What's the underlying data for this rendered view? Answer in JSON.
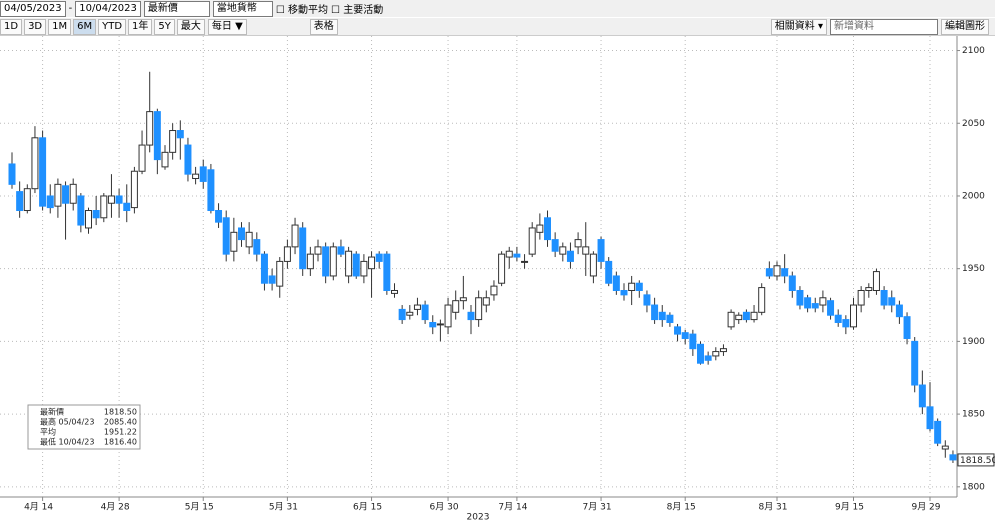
{
  "toolbar": {
    "start_date": "04/05/2023",
    "end_date": "10/04/2023",
    "field": "最新價",
    "currency": "當地貨幣",
    "moving_average": "移動平均",
    "events": "主要活動",
    "ranges": [
      "1D",
      "3D",
      "1M",
      "6M",
      "YTD",
      "1年",
      "5Y",
      "最大"
    ],
    "active_range": "6M",
    "frequency": "每日 ▼",
    "table": "表格",
    "related": "相關資料 ▾",
    "add_data": "新增資料",
    "edit": "編輯圖形"
  },
  "chart_data": {
    "type": "candlestick",
    "x_label": "2023",
    "up_color": "#ffffff",
    "down_color": "#1e90ff",
    "grid": true,
    "x": [
      "2023-04-10",
      "2023-04-11",
      "2023-04-12",
      "2023-04-13",
      "2023-04-14",
      "2023-04-17",
      "2023-04-18",
      "2023-04-19",
      "2023-04-20",
      "2023-04-21",
      "2023-04-24",
      "2023-04-25",
      "2023-04-26",
      "2023-04-27",
      "2023-04-28",
      "2023-05-01",
      "2023-05-02",
      "2023-05-03",
      "2023-05-04",
      "2023-05-05",
      "2023-05-08",
      "2023-05-09",
      "2023-05-10",
      "2023-05-11",
      "2023-05-12",
      "2023-05-15",
      "2023-05-16",
      "2023-05-17",
      "2023-05-18",
      "2023-05-19",
      "2023-05-22",
      "2023-05-23",
      "2023-05-24",
      "2023-05-25",
      "2023-05-26",
      "2023-05-30",
      "2023-05-31",
      "2023-06-01",
      "2023-06-02",
      "2023-06-05",
      "2023-06-06",
      "2023-06-07",
      "2023-06-08",
      "2023-06-09",
      "2023-06-12",
      "2023-06-13",
      "2023-06-14",
      "2023-06-15",
      "2023-06-16",
      "2023-06-20",
      "2023-06-21",
      "2023-06-22",
      "2023-06-23",
      "2023-06-26",
      "2023-06-27",
      "2023-06-28",
      "2023-06-29",
      "2023-06-30",
      "2023-07-03",
      "2023-07-05",
      "2023-07-06",
      "2023-07-07",
      "2023-07-10",
      "2023-07-11",
      "2023-07-12",
      "2023-07-13",
      "2023-07-14",
      "2023-07-17",
      "2023-07-18",
      "2023-07-19",
      "2023-07-20",
      "2023-07-21",
      "2023-07-24",
      "2023-07-25",
      "2023-07-26",
      "2023-07-27",
      "2023-07-28",
      "2023-07-31",
      "2023-08-01",
      "2023-08-02",
      "2023-08-03",
      "2023-08-04",
      "2023-08-07",
      "2023-08-08",
      "2023-08-09",
      "2023-08-10",
      "2023-08-11",
      "2023-08-14",
      "2023-08-15",
      "2023-08-16",
      "2023-08-17",
      "2023-08-18",
      "2023-08-21",
      "2023-08-22",
      "2023-08-23",
      "2023-08-24",
      "2023-08-25",
      "2023-08-28",
      "2023-08-29",
      "2023-08-30",
      "2023-08-31",
      "2023-09-01",
      "2023-09-05",
      "2023-09-06",
      "2023-09-07",
      "2023-09-08",
      "2023-09-11",
      "2023-09-12",
      "2023-09-13",
      "2023-09-14",
      "2023-09-15",
      "2023-09-18",
      "2023-09-19",
      "2023-09-20",
      "2023-09-21",
      "2023-09-22",
      "2023-09-25",
      "2023-09-26",
      "2023-09-27",
      "2023-09-28",
      "2023-09-29",
      "2023-10-02",
      "2023-10-03",
      "2023-10-04"
    ],
    "open": [
      2022,
      2003,
      1990,
      2005,
      2040,
      2000,
      1993,
      2007,
      1995,
      2000,
      1978,
      1990,
      1985,
      1995,
      2000,
      1995,
      1992,
      2017,
      2035,
      2058,
      2020,
      2030,
      2045,
      2035,
      2012,
      2020,
      2018,
      1990,
      1985,
      1962,
      1978,
      1965,
      1970,
      1960,
      1945,
      1938,
      1955,
      1965,
      1978,
      1950,
      1960,
      1965,
      1945,
      1965,
      1945,
      1960,
      1945,
      1950,
      1960,
      1960,
      1933,
      1922,
      1918,
      1922,
      1925,
      1913,
      1912,
      1910,
      1920,
      1928,
      1920,
      1915,
      1925,
      1932,
      1940,
      1958,
      1960,
      1955,
      1960,
      1975,
      1985,
      1970,
      1960,
      1962,
      1965,
      1960,
      1945,
      1970,
      1955,
      1945,
      1935,
      1935,
      1940,
      1932,
      1925,
      1920,
      1918,
      1910,
      1906,
      1905,
      1898,
      1890,
      1890,
      1893,
      1910,
      1915,
      1920,
      1915,
      1920,
      1950,
      1945,
      1950,
      1945,
      1935,
      1930,
      1926,
      1925,
      1928,
      1918,
      1915,
      1910,
      1925,
      1935,
      1935,
      1935,
      1930,
      1925,
      1917,
      1900,
      1870,
      1855,
      1845,
      1826,
      1822
    ],
    "high": [
      2030,
      2010,
      2008,
      2048,
      2045,
      2008,
      2012,
      2010,
      2012,
      2002,
      1992,
      2000,
      2002,
      2015,
      2005,
      2008,
      2020,
      2045,
      2085.4,
      2060,
      2035,
      2050,
      2052,
      2040,
      2020,
      2025,
      2022,
      1995,
      1990,
      1985,
      1982,
      1982,
      1975,
      1962,
      1950,
      1958,
      1970,
      1985,
      1982,
      1965,
      1970,
      1968,
      1968,
      1970,
      1965,
      1962,
      1960,
      1962,
      1962,
      1962,
      1940,
      1925,
      1925,
      1930,
      1928,
      1918,
      1915,
      1930,
      1935,
      1945,
      1925,
      1935,
      1935,
      1942,
      1962,
      1965,
      1965,
      1960,
      1982,
      1988,
      1990,
      1975,
      1968,
      1968,
      1975,
      1982,
      1962,
      1972,
      1958,
      1948,
      1940,
      1945,
      1942,
      1935,
      1930,
      1925,
      1920,
      1912,
      1908,
      1908,
      1900,
      1893,
      1896,
      1898,
      1922,
      1920,
      1922,
      1925,
      1940,
      1955,
      1955,
      1960,
      1948,
      1938,
      1932,
      1930,
      1935,
      1930,
      1922,
      1918,
      1930,
      1938,
      1940,
      1950,
      1938,
      1935,
      1928,
      1920,
      1903,
      1880,
      1872,
      1847,
      1832,
      1825
    ],
    "low": [
      2005,
      1985,
      1988,
      2002,
      1990,
      1988,
      1985,
      1970,
      1990,
      1975,
      1974,
      1980,
      1982,
      1985,
      1985,
      1982,
      1988,
      2015,
      2030,
      2015,
      2018,
      2025,
      2025,
      2010,
      2008,
      2005,
      1988,
      1978,
      1955,
      1955,
      1965,
      1960,
      1955,
      1935,
      1935,
      1930,
      1950,
      1960,
      1945,
      1945,
      1955,
      1940,
      1942,
      1958,
      1940,
      1943,
      1940,
      1930,
      1950,
      1932,
      1930,
      1912,
      1915,
      1918,
      1912,
      1905,
      1900,
      1905,
      1915,
      1922,
      1905,
      1910,
      1920,
      1928,
      1938,
      1950,
      1955,
      1950,
      1958,
      1970,
      1965,
      1958,
      1955,
      1950,
      1960,
      1945,
      1940,
      1950,
      1938,
      1932,
      1928,
      1925,
      1930,
      1920,
      1912,
      1910,
      1910,
      1900,
      1898,
      1890,
      1884,
      1884,
      1887,
      1890,
      1908,
      1912,
      1913,
      1913,
      1918,
      1943,
      1942,
      1940,
      1930,
      1922,
      1920,
      1920,
      1920,
      1915,
      1910,
      1905,
      1908,
      1920,
      1930,
      1932,
      1922,
      1920,
      1912,
      1898,
      1865,
      1850,
      1838,
      1828,
      1820,
      1816.4
    ],
    "close": [
      2008,
      1990,
      2005,
      2040,
      1993,
      1992,
      2008,
      1995,
      2008,
      1980,
      1990,
      1985,
      2000,
      2000,
      1995,
      1990,
      2017,
      2035,
      2058,
      2025,
      2030,
      2045,
      2040,
      2015,
      2015,
      2010,
      1990,
      1982,
      1960,
      1975,
      1970,
      1975,
      1960,
      1940,
      1940,
      1955,
      1965,
      1980,
      1950,
      1960,
      1965,
      1945,
      1965,
      1960,
      1962,
      1945,
      1955,
      1958,
      1955,
      1935,
      1935,
      1915,
      1920,
      1925,
      1915,
      1910,
      1912,
      1925,
      1928,
      1930,
      1915,
      1930,
      1930,
      1938,
      1960,
      1962,
      1958,
      1955,
      1978,
      1980,
      1970,
      1962,
      1965,
      1955,
      1970,
      1965,
      1960,
      1955,
      1940,
      1935,
      1932,
      1940,
      1935,
      1925,
      1915,
      1915,
      1913,
      1905,
      1902,
      1895,
      1885,
      1887,
      1893,
      1895,
      1920,
      1918,
      1915,
      1920,
      1937,
      1945,
      1952,
      1945,
      1935,
      1925,
      1923,
      1923,
      1930,
      1918,
      1913,
      1910,
      1925,
      1935,
      1937,
      1948,
      1925,
      1925,
      1917,
      1902,
      1870,
      1855,
      1840,
      1830,
      1828,
      1818.5
    ],
    "ylim": [
      1793,
      2110
    ],
    "yticks": [
      1800,
      1850,
      1900,
      1950,
      2000,
      2050,
      2100
    ],
    "xticks": [
      {
        "value": "2023-04-14",
        "label": "4月 14"
      },
      {
        "value": "2023-04-28",
        "label": "4月 28"
      },
      {
        "value": "2023-05-15",
        "label": "5月 15"
      },
      {
        "value": "2023-05-31",
        "label": "5月 31"
      },
      {
        "value": "2023-06-15",
        "label": "6月 15"
      },
      {
        "value": "2023-06-30",
        "label": "6月 30"
      },
      {
        "value": "2023-07-14",
        "label": "7月 14"
      },
      {
        "value": "2023-07-31",
        "label": "7月 31"
      },
      {
        "value": "2023-08-15",
        "label": "8月 15"
      },
      {
        "value": "2023-08-31",
        "label": "8月 31"
      },
      {
        "value": "2023-09-15",
        "label": "9月 15"
      },
      {
        "value": "2023-09-29",
        "label": "9月 29"
      }
    ],
    "last_price": {
      "value": 1818.5,
      "label": "1818.50"
    },
    "stats": [
      {
        "label": "最新價",
        "value": 1818.5,
        "value_label": "1818.50"
      },
      {
        "label": "最高 05/04/23",
        "value": 2085.4,
        "value_label": "2085.40"
      },
      {
        "label": "平均",
        "value": 1951.22,
        "value_label": "1951.22"
      },
      {
        "label": "最低 10/04/23",
        "value": 1816.4,
        "value_label": "1816.40"
      }
    ]
  }
}
